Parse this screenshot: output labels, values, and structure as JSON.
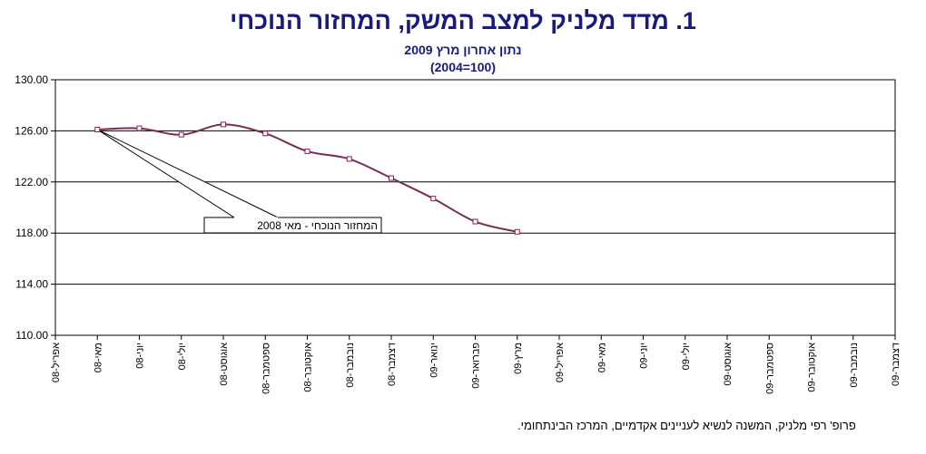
{
  "title": "1.  מדד מלניק למצב המשק, המחזור הנוכחי",
  "subtitle": "נתון אחרון מרץ 2009",
  "base_note": "(2004=100)",
  "footer": "פרופ' רפי מלניק, המשנה לנשיא לעניינים אקדמיים, המרכז הבינתחומי.",
  "colors": {
    "line": "#7a2c52",
    "marker": "#8a2060",
    "grid": "#000000",
    "title": "#1a1a7a"
  },
  "chart_data": {
    "type": "line",
    "title": "1.  מדד מלניק למצב המשק, המחזור הנוכחי",
    "categories": [
      "אפריל-08",
      "מאי-08",
      "יוני-08",
      "יולי-08",
      "אוגוסט-08",
      "ספטמבר-08",
      "אוקטובר-08",
      "נובמבר-08",
      "דצמבר-08",
      "ינואר-09",
      "פברואר-09",
      "מרץ-09",
      "אפריל-09",
      "מאי-09",
      "יוני-09",
      "יולי-09",
      "אוגוסט-09",
      "ספטמבר-09",
      "אוקטובר-09",
      "נובמבר-09",
      "דצמבר-09"
    ],
    "series": [
      {
        "values": [
          null,
          126.1,
          126.2,
          125.7,
          126.5,
          125.8,
          124.4,
          123.8,
          122.3,
          120.7,
          118.9,
          118.1,
          null,
          null,
          null,
          null,
          null,
          null,
          null,
          null,
          null
        ]
      }
    ],
    "ylim": [
      110,
      130
    ],
    "yticks": [
      "110.00",
      "114.00",
      "118.00",
      "122.00",
      "126.00",
      "130.00"
    ],
    "grid": "horizontal",
    "annotation": {
      "text": "המחזור הנוכחי - מאי 2008",
      "points_to": "מאי-08"
    }
  }
}
